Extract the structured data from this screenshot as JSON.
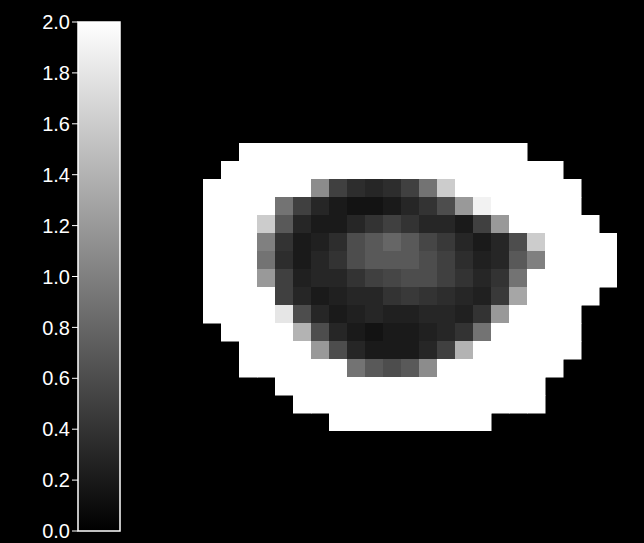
{
  "chart_data": {
    "type": "heatmap",
    "cells": [
      [
        null,
        null,
        2,
        2,
        2,
        2,
        2,
        2,
        2,
        2,
        2,
        2,
        2,
        2,
        2,
        2,
        2,
        2,
        null,
        null,
        null,
        null,
        null
      ],
      [
        null,
        2,
        2,
        2,
        2,
        2,
        2,
        2,
        2,
        2,
        2,
        2,
        2,
        2,
        2,
        2,
        2,
        2,
        2,
        2,
        null,
        null,
        null
      ],
      [
        2,
        2,
        2,
        2,
        2,
        2,
        1.1,
        0.5,
        0.35,
        0.3,
        0.35,
        0.5,
        0.9,
        1.6,
        2,
        2,
        2,
        2,
        2,
        2,
        2,
        null,
        null
      ],
      [
        2,
        2,
        2,
        2,
        0.9,
        0.5,
        0.3,
        0.2,
        0.15,
        0.15,
        0.2,
        0.3,
        0.4,
        0.6,
        1.2,
        1.9,
        2,
        2,
        2,
        2,
        2,
        null,
        null
      ],
      [
        2,
        2,
        2,
        1.6,
        0.7,
        0.3,
        0.2,
        0.2,
        0.3,
        0.4,
        0.5,
        0.4,
        0.3,
        0.3,
        0.2,
        0.5,
        1.2,
        2,
        2,
        2,
        2,
        2,
        null
      ],
      [
        2,
        2,
        2,
        1.0,
        0.4,
        0.2,
        0.25,
        0.35,
        0.6,
        0.7,
        0.8,
        0.7,
        0.55,
        0.45,
        0.3,
        0.2,
        0.3,
        0.6,
        1.6,
        2,
        2,
        2,
        2
      ],
      [
        2,
        2,
        2,
        0.9,
        0.35,
        0.2,
        0.3,
        0.4,
        0.6,
        0.7,
        0.7,
        0.7,
        0.6,
        0.5,
        0.35,
        0.25,
        0.3,
        0.7,
        1.0,
        2,
        2,
        2,
        2
      ],
      [
        2,
        2,
        2,
        1.2,
        0.5,
        0.25,
        0.3,
        0.3,
        0.4,
        0.5,
        0.55,
        0.6,
        0.6,
        0.5,
        0.4,
        0.3,
        0.4,
        0.9,
        2,
        2,
        2,
        2,
        2
      ],
      [
        2,
        2,
        2,
        2,
        0.5,
        0.3,
        0.2,
        0.25,
        0.3,
        0.3,
        0.4,
        0.45,
        0.4,
        0.35,
        0.3,
        0.25,
        0.45,
        1.3,
        2,
        2,
        2,
        2,
        null
      ],
      [
        2,
        2,
        2,
        2,
        1.8,
        0.6,
        0.3,
        0.2,
        0.25,
        0.3,
        0.25,
        0.25,
        0.3,
        0.3,
        0.25,
        0.4,
        1.2,
        2,
        2,
        2,
        2,
        null,
        null
      ],
      [
        null,
        2,
        2,
        2,
        2,
        1.4,
        0.6,
        0.3,
        0.2,
        0.15,
        0.2,
        0.2,
        0.25,
        0.3,
        0.4,
        0.9,
        2,
        2,
        2,
        2,
        2,
        null,
        null
      ],
      [
        null,
        null,
        2,
        2,
        2,
        2,
        1.2,
        0.6,
        0.3,
        0.2,
        0.2,
        0.2,
        0.3,
        0.5,
        1.4,
        2,
        2,
        2,
        2,
        2,
        2,
        null,
        null
      ],
      [
        null,
        null,
        2,
        2,
        2,
        2,
        2,
        2,
        0.9,
        0.7,
        0.6,
        0.7,
        1.1,
        2,
        2,
        2,
        2,
        2,
        2,
        2,
        null,
        null,
        null
      ],
      [
        null,
        null,
        null,
        null,
        2,
        2,
        2,
        2,
        2,
        2,
        2,
        2,
        2,
        2,
        2,
        2,
        2,
        2,
        2,
        null,
        null,
        null,
        null
      ],
      [
        null,
        null,
        null,
        null,
        null,
        2,
        2,
        2,
        2,
        2,
        2,
        2,
        2,
        2,
        2,
        2,
        2,
        2,
        2,
        null,
        null,
        null,
        null
      ],
      [
        null,
        null,
        null,
        null,
        null,
        null,
        null,
        2,
        2,
        2,
        2,
        2,
        2,
        2,
        2,
        2,
        null,
        null,
        null,
        null,
        null,
        null,
        null
      ]
    ],
    "colorbar": {
      "range": [
        0,
        2
      ],
      "ticks": [
        {
          "value": 0,
          "label": "0.0"
        },
        {
          "value": 0.2,
          "label": "0.2"
        },
        {
          "value": 0.4,
          "label": "0.4"
        },
        {
          "value": 0.6,
          "label": "0.6"
        },
        {
          "value": 0.8,
          "label": "0.8"
        },
        {
          "value": 1,
          "label": "1.0"
        },
        {
          "value": 1.2,
          "label": "1.2"
        },
        {
          "value": 1.4,
          "label": "1.4"
        },
        {
          "value": 1.6,
          "label": "1.6"
        },
        {
          "value": 1.8,
          "label": "1.8"
        },
        {
          "value": 2,
          "label": "2.0"
        }
      ]
    }
  }
}
